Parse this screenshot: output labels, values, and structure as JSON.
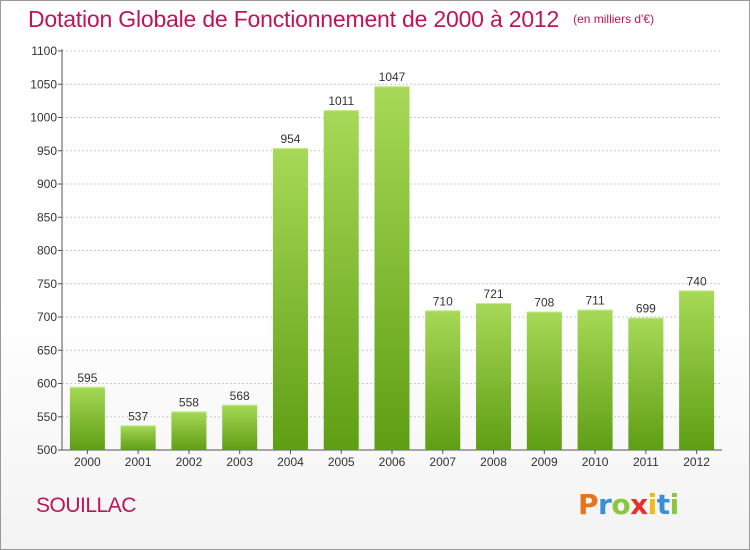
{
  "title": "Dotation Globale de Fonctionnement de 2000 à 2012",
  "unit": "(en milliers d'€)",
  "city": "SOUILLAC",
  "logo": {
    "letters": [
      "P",
      "r",
      "o",
      "x",
      "i",
      "t",
      "i"
    ],
    "colors": [
      "#e8731a",
      "#3a8fd6",
      "#8cc63f",
      "#e5332a",
      "#f2b81c",
      "#3a8fd6",
      "#8cc63f"
    ]
  },
  "colors": {
    "accent": "#c0135a",
    "bar_top": "#a6d957",
    "bar_bottom": "#5f9e14",
    "grid": "#cccccc"
  },
  "chart_data": {
    "type": "bar",
    "title": "Dotation Globale de Fonctionnement de 2000 à 2012",
    "categories": [
      "2000",
      "2001",
      "2002",
      "2003",
      "2004",
      "2005",
      "2006",
      "2007",
      "2008",
      "2009",
      "2010",
      "2011",
      "2012"
    ],
    "values": [
      595,
      537,
      558,
      568,
      954,
      1011,
      1047,
      710,
      721,
      708,
      711,
      699,
      740
    ],
    "ylim": [
      500,
      1100
    ],
    "yticks": [
      500,
      550,
      600,
      650,
      700,
      750,
      800,
      850,
      900,
      950,
      1000,
      1050,
      1100
    ],
    "grid": true,
    "xlabel": "",
    "ylabel": ""
  }
}
